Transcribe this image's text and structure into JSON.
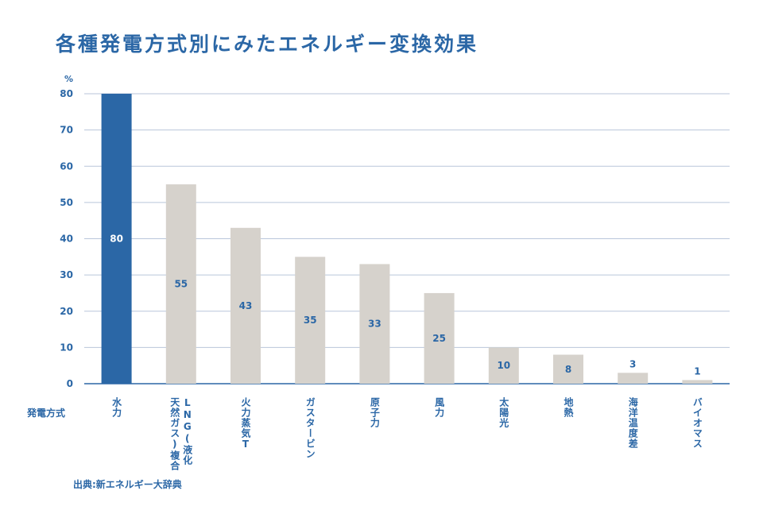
{
  "chart_data": {
    "type": "bar",
    "title": "各種発電方式別にみたエネルギー変換効果",
    "ylabel": "%",
    "xlabel": "発電方式",
    "ylim": [
      0,
      80
    ],
    "yticks": [
      0,
      10,
      20,
      30,
      40,
      50,
      60,
      70,
      80
    ],
    "grid": true,
    "categories": [
      "水力",
      "LNG(液化\n天然ガス)複合",
      "火力蒸気T",
      "ガスタービン",
      "原子力",
      "風力",
      "太陽光",
      "地熱",
      "海洋温度差",
      "バイオマス"
    ],
    "values": [
      80,
      55,
      43,
      35,
      33,
      25,
      10,
      8,
      3,
      1
    ],
    "highlight_color": "#2b67a6",
    "bar_color": "#d6d2cc",
    "source": "出典:新エネルギー大辞典"
  }
}
